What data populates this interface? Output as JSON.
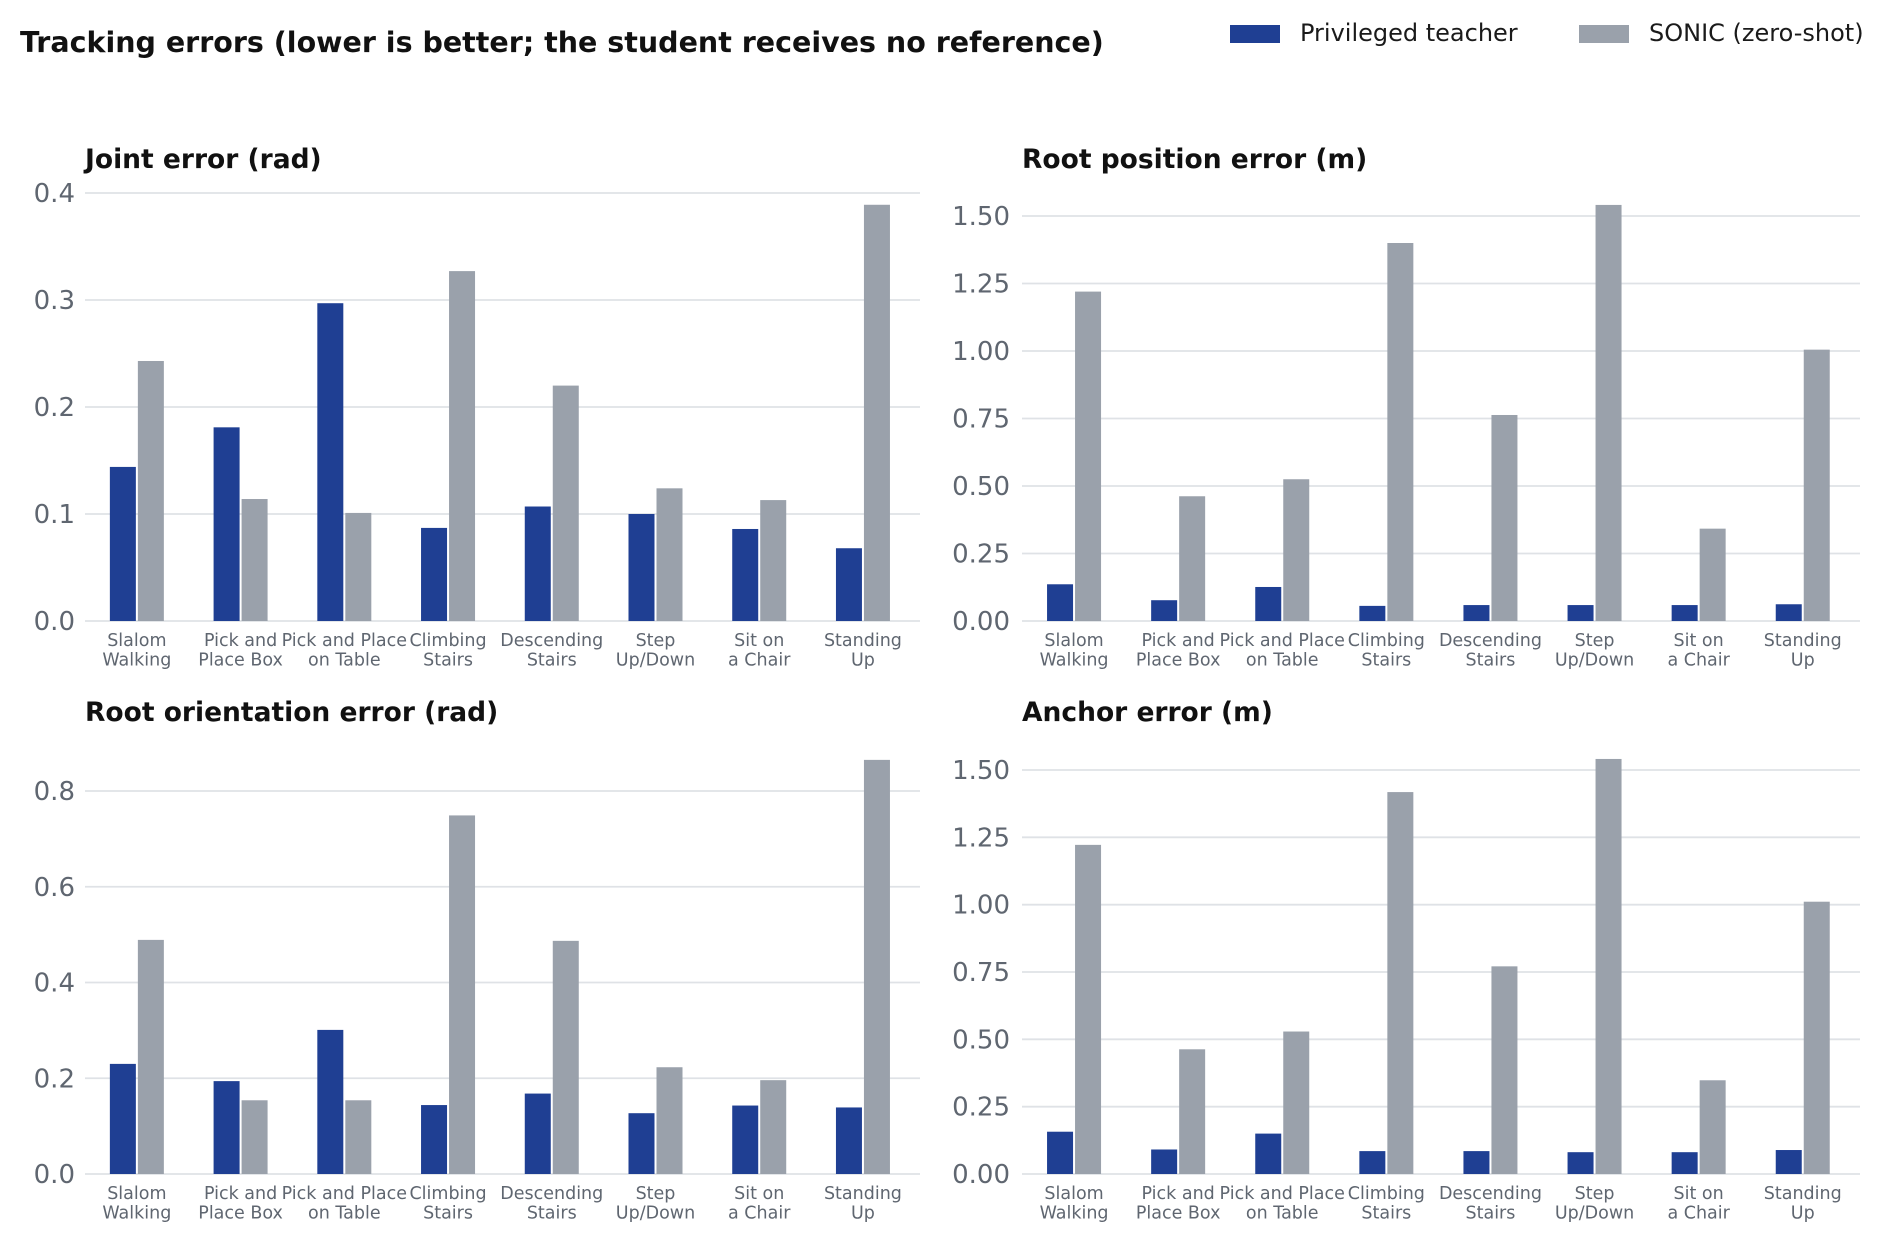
{
  "title": "Tracking errors (lower is better; the student receives no reference)",
  "colors": {
    "teacher": "#1f3f93",
    "sonic": "#9aa1ab"
  },
  "legend": [
    {
      "label": "Privileged teacher",
      "color": "#1f3f93"
    },
    {
      "label": "SONIC (zero-shot)",
      "color": "#9aa1ab"
    }
  ],
  "chart_data": [
    {
      "type": "bar",
      "title": "Joint error (rad)",
      "categories": [
        [
          "Slalom",
          "Walking"
        ],
        [
          "Pick and",
          "Place Box"
        ],
        [
          "Pick and Place",
          "on Table"
        ],
        [
          "Climbing",
          "Stairs"
        ],
        [
          "Descending",
          "Stairs"
        ],
        [
          "Step",
          "Up/Down"
        ],
        [
          "Sit on",
          "a Chair"
        ],
        [
          "Standing",
          "Up"
        ]
      ],
      "series": [
        {
          "name": "Privileged teacher",
          "values": [
            0.144,
            0.181,
            0.297,
            0.087,
            0.107,
            0.1,
            0.086,
            0.068
          ]
        },
        {
          "name": "SONIC (zero-shot)",
          "values": [
            0.243,
            0.114,
            0.101,
            0.327,
            0.22,
            0.124,
            0.113,
            0.389
          ]
        }
      ],
      "yticks": [
        "0.0",
        "0.1",
        "0.2",
        "0.3",
        "0.4"
      ],
      "ylim": [
        0,
        0.4
      ]
    },
    {
      "type": "bar",
      "title": "Root position error (m)",
      "categories": [
        [
          "Slalom",
          "Walking"
        ],
        [
          "Pick and",
          "Place Box"
        ],
        [
          "Pick and Place",
          "on Table"
        ],
        [
          "Climbing",
          "Stairs"
        ],
        [
          "Descending",
          "Stairs"
        ],
        [
          "Step",
          "Up/Down"
        ],
        [
          "Sit on",
          "a Chair"
        ],
        [
          "Standing",
          "Up"
        ]
      ],
      "series": [
        {
          "name": "Privileged teacher",
          "values": [
            0.136,
            0.077,
            0.126,
            0.056,
            0.059,
            0.059,
            0.059,
            0.062
          ]
        },
        {
          "name": "SONIC (zero-shot)",
          "values": [
            1.22,
            0.462,
            0.525,
            1.4,
            0.763,
            1.541,
            0.342,
            1.005
          ]
        }
      ],
      "yticks": [
        "0.00",
        "0.25",
        "0.50",
        "0.75",
        "1.00",
        "1.25",
        "1.50"
      ],
      "ylim": [
        0,
        1.5
      ]
    },
    {
      "type": "bar",
      "title": "Root orientation error (rad)",
      "categories": [
        [
          "Slalom",
          "Walking"
        ],
        [
          "Pick and",
          "Place Box"
        ],
        [
          "Pick and Place",
          "on Table"
        ],
        [
          "Climbing",
          "Stairs"
        ],
        [
          "Descending",
          "Stairs"
        ],
        [
          "Step",
          "Up/Down"
        ],
        [
          "Sit on",
          "a Chair"
        ],
        [
          "Standing",
          "Up"
        ]
      ],
      "series": [
        {
          "name": "Privileged teacher",
          "values": [
            0.23,
            0.194,
            0.301,
            0.144,
            0.168,
            0.127,
            0.143,
            0.139
          ]
        },
        {
          "name": "SONIC (zero-shot)",
          "values": [
            0.489,
            0.154,
            0.154,
            0.749,
            0.487,
            0.223,
            0.196,
            0.865
          ]
        }
      ],
      "yticks": [
        "0.0",
        "0.2",
        "0.4",
        "0.6",
        "0.8"
      ],
      "ylim": [
        0,
        0.8
      ]
    },
    {
      "type": "bar",
      "title": "Anchor error (m)",
      "categories": [
        [
          "Slalom",
          "Walking"
        ],
        [
          "Pick and",
          "Place Box"
        ],
        [
          "Pick and Place",
          "on Table"
        ],
        [
          "Climbing",
          "Stairs"
        ],
        [
          "Descending",
          "Stairs"
        ],
        [
          "Step",
          "Up/Down"
        ],
        [
          "Sit on",
          "a Chair"
        ],
        [
          "Standing",
          "Up"
        ]
      ],
      "series": [
        {
          "name": "Privileged teacher",
          "values": [
            0.157,
            0.091,
            0.15,
            0.085,
            0.085,
            0.081,
            0.081,
            0.089
          ]
        },
        {
          "name": "SONIC (zero-shot)",
          "values": [
            1.222,
            0.463,
            0.529,
            1.418,
            0.771,
            1.541,
            0.348,
            1.011
          ]
        }
      ],
      "yticks": [
        "0.00",
        "0.25",
        "0.50",
        "0.75",
        "1.00",
        "1.25",
        "1.50"
      ],
      "ylim": [
        0,
        1.5
      ]
    }
  ]
}
